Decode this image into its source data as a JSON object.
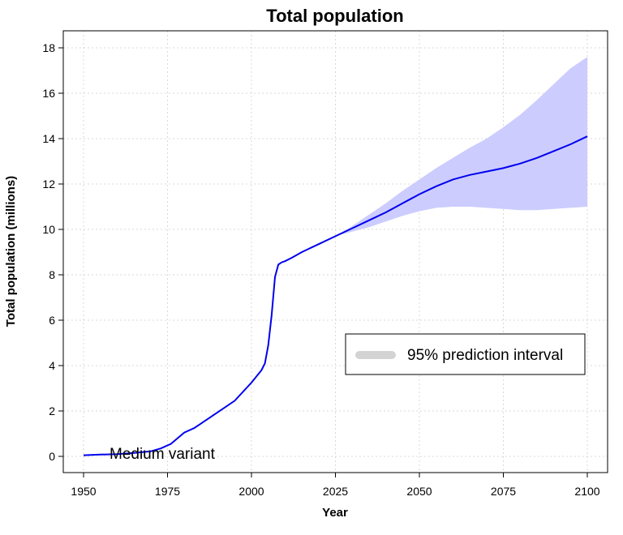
{
  "chart_data": {
    "type": "line",
    "title": "Total population",
    "xlabel": "Year",
    "ylabel": "Total population (millions)",
    "xlim": [
      1950,
      2100
    ],
    "ylim": [
      0,
      18
    ],
    "xticks": [
      1950,
      1975,
      2000,
      2025,
      2050,
      2075,
      2100
    ],
    "yticks": [
      0,
      2,
      4,
      6,
      8,
      10,
      12,
      14,
      16,
      18
    ],
    "grid": true,
    "legend": {
      "position": "center-right",
      "entries": [
        "95% prediction interval"
      ]
    },
    "annotation": "Medium variant",
    "colors": {
      "line": "#0000ee",
      "band": "#ccccff",
      "legend_swatch": "#d3d3d3",
      "grid": "#d9d9d9"
    },
    "series": [
      {
        "x": [
          1950,
          1955,
          1960,
          1965,
          1970,
          1973,
          1976,
          1978,
          1980,
          1983,
          1985,
          1990,
          1995,
          2000,
          2003,
          2004,
          2005,
          2006,
          2007,
          2008,
          2009,
          2010,
          2012,
          2015,
          2020,
          2025,
          2030,
          2035,
          2040,
          2045,
          2050,
          2055,
          2060,
          2065,
          2070,
          2075,
          2080,
          2085,
          2090,
          2095,
          2100
        ],
        "y": [
          0.05,
          0.08,
          0.1,
          0.15,
          0.22,
          0.35,
          0.55,
          0.8,
          1.05,
          1.25,
          1.45,
          1.95,
          2.45,
          3.25,
          3.8,
          4.1,
          4.9,
          6.2,
          7.9,
          8.45,
          8.55,
          8.6,
          8.75,
          9.0,
          9.35,
          9.7,
          10.05,
          10.4,
          10.75,
          11.15,
          11.55,
          11.9,
          12.2,
          12.4,
          12.55,
          12.7,
          12.9,
          13.15,
          13.45,
          13.75,
          14.1
        ]
      }
    ],
    "band": {
      "x": [
        2025,
        2030,
        2035,
        2040,
        2045,
        2050,
        2055,
        2060,
        2065,
        2070,
        2075,
        2080,
        2085,
        2090,
        2095,
        2100
      ],
      "lower": [
        9.7,
        9.9,
        10.1,
        10.35,
        10.6,
        10.8,
        10.95,
        11.0,
        11.0,
        10.95,
        10.9,
        10.85,
        10.85,
        10.9,
        10.95,
        11.0
      ],
      "upper": [
        9.7,
        10.15,
        10.65,
        11.15,
        11.7,
        12.2,
        12.7,
        13.15,
        13.6,
        14.0,
        14.5,
        15.05,
        15.7,
        16.4,
        17.1,
        17.6
      ]
    }
  }
}
